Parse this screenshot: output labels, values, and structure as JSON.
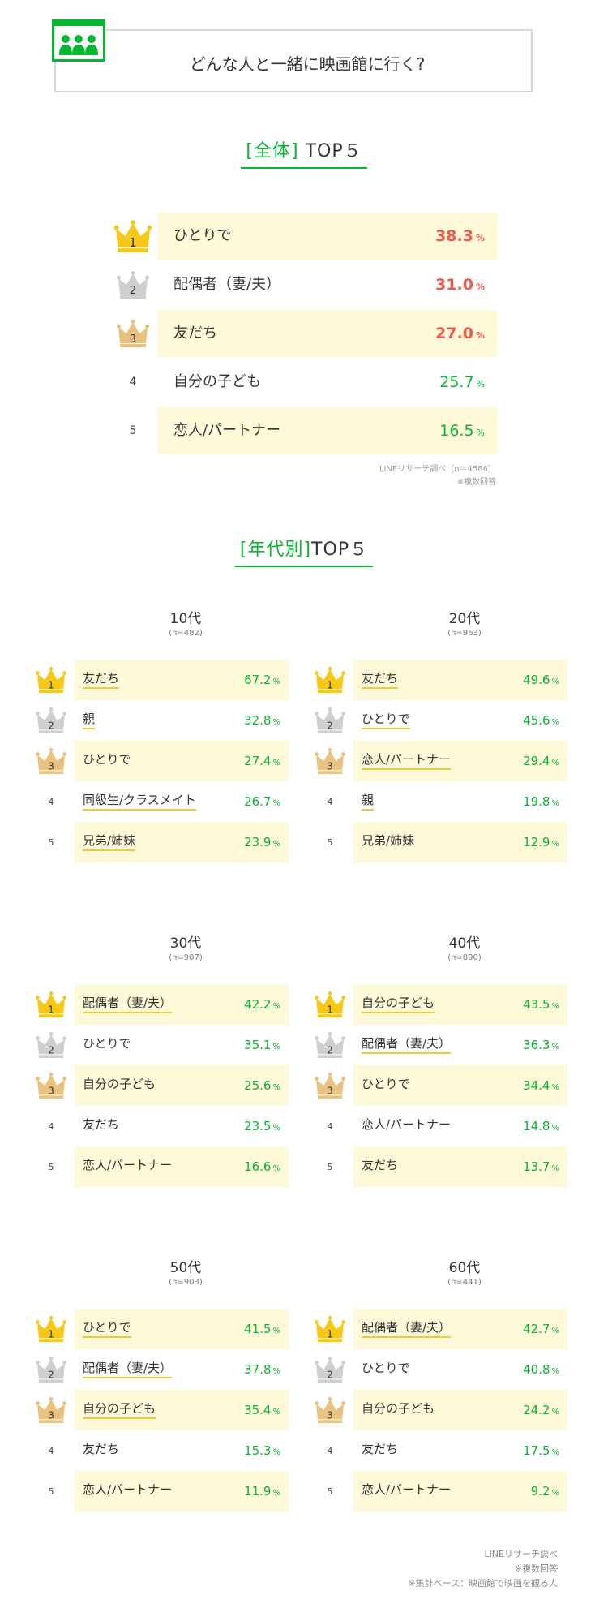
{
  "header": {
    "title": "どんな人と一緒に映画館に行く?"
  },
  "overall": {
    "title_bracket": "[全体]",
    "title_rest": "TOP５",
    "rows": [
      {
        "rank": "1",
        "label": "ひとりで",
        "value": "38.3",
        "unit": "%"
      },
      {
        "rank": "2",
        "label": "配偶者（妻/夫）",
        "value": "31.0",
        "unit": "%"
      },
      {
        "rank": "3",
        "label": "友だち",
        "value": "27.0",
        "unit": "%"
      },
      {
        "rank": "4",
        "label": "自分の子ども",
        "value": "25.7",
        "unit": "%"
      },
      {
        "rank": "5",
        "label": "恋人/パートナー",
        "value": "16.5",
        "unit": "%"
      }
    ],
    "note_source": "LINEリサーチ調べ（n＝4586）",
    "note_multi": "※複数回答"
  },
  "by_age": {
    "title_bracket": "[年代別]",
    "title_rest": "TOP５",
    "groups": [
      {
        "title": "10代",
        "n": "(n=482)",
        "rows": [
          {
            "rank": "1",
            "label": "友だち",
            "value": "67.2",
            "unit": "%"
          },
          {
            "rank": "2",
            "label": "親",
            "value": "32.8",
            "unit": "%"
          },
          {
            "rank": "3",
            "label": "ひとりで",
            "value": "27.4",
            "unit": "%"
          },
          {
            "rank": "4",
            "label": "同級生/クラスメイト",
            "value": "26.7",
            "unit": "%"
          },
          {
            "rank": "5",
            "label": "兄弟/姉妹",
            "value": "23.9",
            "unit": "%"
          }
        ]
      },
      {
        "title": "20代",
        "n": "(n=963)",
        "rows": [
          {
            "rank": "1",
            "label": "友だち",
            "value": "49.6",
            "unit": "%"
          },
          {
            "rank": "2",
            "label": "ひとりで",
            "value": "45.6",
            "unit": "%"
          },
          {
            "rank": "3",
            "label": "恋人/パートナー",
            "value": "29.4",
            "unit": "%"
          },
          {
            "rank": "4",
            "label": "親",
            "value": "19.8",
            "unit": "%"
          },
          {
            "rank": "5",
            "label": "兄弟/姉妹",
            "value": "12.9",
            "unit": "%"
          }
        ]
      },
      {
        "title": "30代",
        "n": "(n=907)",
        "rows": [
          {
            "rank": "1",
            "label": "配偶者（妻/夫）",
            "value": "42.2",
            "unit": "%"
          },
          {
            "rank": "2",
            "label": "ひとりで",
            "value": "35.1",
            "unit": "%"
          },
          {
            "rank": "3",
            "label": "自分の子ども",
            "value": "25.6",
            "unit": "%"
          },
          {
            "rank": "4",
            "label": "友だち",
            "value": "23.5",
            "unit": "%"
          },
          {
            "rank": "5",
            "label": "恋人/パートナー",
            "value": "16.6",
            "unit": "%"
          }
        ]
      },
      {
        "title": "40代",
        "n": "(n=890)",
        "rows": [
          {
            "rank": "1",
            "label": "自分の子ども",
            "value": "43.5",
            "unit": "%"
          },
          {
            "rank": "2",
            "label": "配偶者（妻/夫）",
            "value": "36.3",
            "unit": "%"
          },
          {
            "rank": "3",
            "label": "ひとりで",
            "value": "34.4",
            "unit": "%"
          },
          {
            "rank": "4",
            "label": "恋人/パートナー",
            "value": "14.8",
            "unit": "%"
          },
          {
            "rank": "5",
            "label": "友だち",
            "value": "13.7",
            "unit": "%"
          }
        ]
      },
      {
        "title": "50代",
        "n": "(n=903)",
        "rows": [
          {
            "rank": "1",
            "label": "ひとりで",
            "value": "41.5",
            "unit": "%"
          },
          {
            "rank": "2",
            "label": "配偶者（妻/夫）",
            "value": "37.8",
            "unit": "%"
          },
          {
            "rank": "3",
            "label": "自分の子ども",
            "value": "35.4",
            "unit": "%"
          },
          {
            "rank": "4",
            "label": "友だち",
            "value": "15.3",
            "unit": "%"
          },
          {
            "rank": "5",
            "label": "恋人/パートナー",
            "value": "11.9",
            "unit": "%"
          }
        ]
      },
      {
        "title": "60代",
        "n": "(n=441)",
        "rows": [
          {
            "rank": "1",
            "label": "配偶者（妻/夫）",
            "value": "42.7",
            "unit": "%"
          },
          {
            "rank": "2",
            "label": "ひとりで",
            "value": "40.8",
            "unit": "%"
          },
          {
            "rank": "3",
            "label": "自分の子ども",
            "value": "24.2",
            "unit": "%"
          },
          {
            "rank": "4",
            "label": "友だち",
            "value": "17.5",
            "unit": "%"
          },
          {
            "rank": "5",
            "label": "恋人/パートナー",
            "value": "9.2",
            "unit": "%"
          }
        ]
      }
    ]
  },
  "footer": {
    "line1": "LINEリサーチ調べ",
    "line2": "※複数回答",
    "line3": "※集計ベース：映画館で映画を観る人"
  },
  "colors": {
    "accent_green": "#06b531",
    "rank_red": "#f0584b",
    "highlight_bg": "#fef9d9",
    "underline_yellow": "#f3c935",
    "crown_gold": "#f6c817",
    "crown_silver": "#cfcfcf",
    "crown_bronze": "#e9c27e"
  },
  "icons": {
    "header": "audience-icon",
    "rank1": "gold-crown-icon",
    "rank2": "silver-crown-icon",
    "rank3": "bronze-crown-icon"
  }
}
